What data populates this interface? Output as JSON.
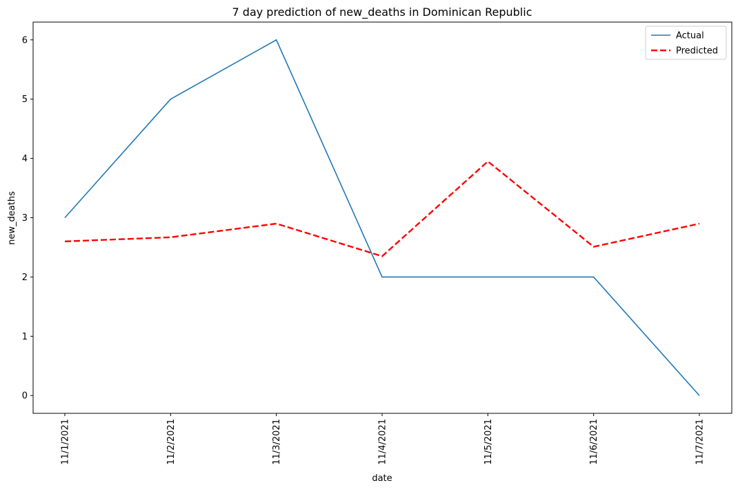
{
  "chart_data": {
    "type": "line",
    "title": "7 day prediction of new_deaths in Dominican Republic",
    "xlabel": "date",
    "ylabel": "new_deaths",
    "categories": [
      "11/1/2021",
      "11/2/2021",
      "11/3/2021",
      "11/4/2021",
      "11/5/2021",
      "11/6/2021",
      "11/7/2021"
    ],
    "ylim": [
      -0.3,
      6.3
    ],
    "yticks": [
      0,
      1,
      2,
      3,
      4,
      5,
      6
    ],
    "series": [
      {
        "name": "Actual",
        "values": [
          3,
          5,
          6,
          2,
          2,
          2,
          0
        ],
        "color": "#1f77b4",
        "style": "solid"
      },
      {
        "name": "Predicted",
        "values": [
          2.6,
          2.67,
          2.9,
          2.35,
          3.95,
          2.51,
          2.9
        ],
        "color": "#ff0000",
        "style": "dashed"
      }
    ],
    "grid": false,
    "legend_position": "top-right"
  }
}
